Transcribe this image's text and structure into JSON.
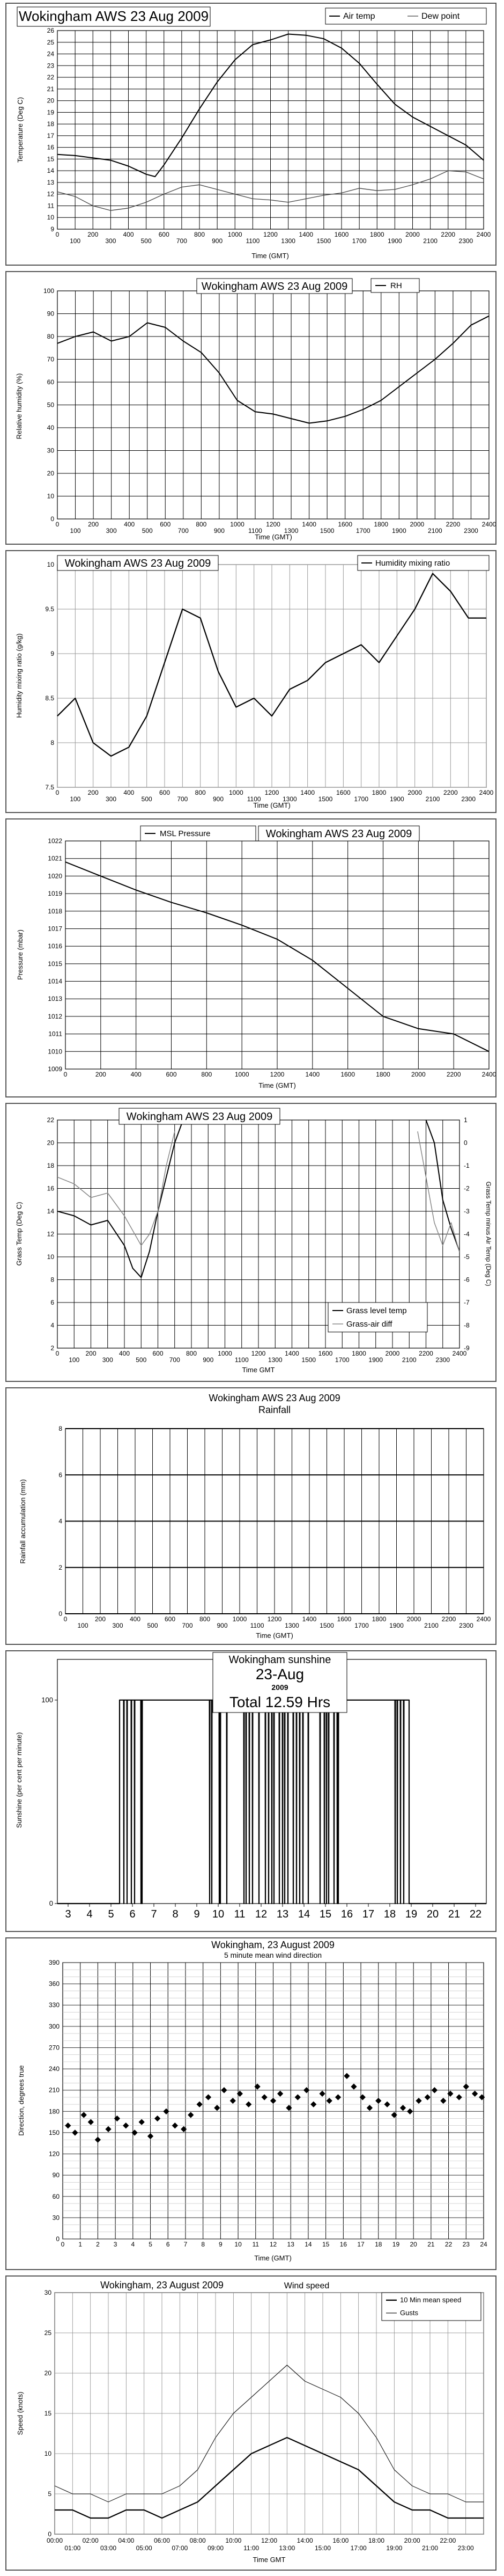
{
  "page": {
    "background": "#ffffff"
  },
  "charts": [
    {
      "id": "temp",
      "type": "line",
      "title": "Wokingham AWS 23 Aug 2009",
      "xlabel": "Time (GMT)",
      "ylabel": "Temperature (Deg C)",
      "xlim": [
        0,
        2400
      ],
      "ylim": [
        9,
        26
      ],
      "x_ticks": [
        0,
        100,
        200,
        300,
        400,
        500,
        600,
        700,
        800,
        900,
        1000,
        1100,
        1200,
        1300,
        1400,
        1500,
        1600,
        1700,
        1800,
        1900,
        2000,
        2100,
        2200,
        2300,
        2400
      ],
      "y_ticks": [
        9,
        10,
        11,
        12,
        13,
        14,
        15,
        16,
        17,
        18,
        19,
        20,
        21,
        22,
        23,
        24,
        25,
        26
      ],
      "legend": [
        "Air temp",
        "Dew point"
      ],
      "series": [
        {
          "name": "Air temp",
          "x": [
            0,
            100,
            200,
            300,
            400,
            500,
            550,
            600,
            700,
            800,
            900,
            1000,
            1100,
            1200,
            1300,
            1400,
            1500,
            1600,
            1700,
            1800,
            1900,
            2000,
            2100,
            2200,
            2300,
            2400
          ],
          "y": [
            15.4,
            15.3,
            15.1,
            14.9,
            14.4,
            13.7,
            13.5,
            14.5,
            16.8,
            19.3,
            21.6,
            23.5,
            24.8,
            25.2,
            25.7,
            25.6,
            25.3,
            24.5,
            23.2,
            21.4,
            19.7,
            18.6,
            17.8,
            17.0,
            16.2,
            14.9
          ]
        },
        {
          "name": "Dew point",
          "x": [
            0,
            100,
            200,
            300,
            400,
            500,
            600,
            700,
            800,
            900,
            1000,
            1100,
            1200,
            1300,
            1400,
            1500,
            1600,
            1700,
            1800,
            1900,
            2000,
            2100,
            2200,
            2300,
            2400
          ],
          "y": [
            12.2,
            11.8,
            11.0,
            10.6,
            10.8,
            11.3,
            12.0,
            12.6,
            12.8,
            12.4,
            12.0,
            11.6,
            11.5,
            11.3,
            11.6,
            11.9,
            12.1,
            12.5,
            12.3,
            12.4,
            12.8,
            13.3,
            14.0,
            13.9,
            13.3
          ]
        }
      ]
    },
    {
      "id": "rh",
      "type": "line",
      "title": "Wokingham AWS 23 Aug 2009",
      "xlabel": "Time (GMT)",
      "ylabel": "Relative humidity (%)",
      "xlim": [
        0,
        2400
      ],
      "ylim": [
        0,
        100
      ],
      "x_ticks": [
        0,
        100,
        200,
        300,
        400,
        500,
        600,
        700,
        800,
        900,
        1000,
        1100,
        1200,
        1300,
        1400,
        1500,
        1600,
        1700,
        1800,
        1900,
        2000,
        2100,
        2200,
        2300,
        2400
      ],
      "y_ticks": [
        0,
        10,
        20,
        30,
        40,
        50,
        60,
        70,
        80,
        90,
        100
      ],
      "legend": [
        "RH"
      ],
      "series": [
        {
          "name": "RH",
          "x": [
            0,
            100,
            200,
            300,
            400,
            500,
            600,
            700,
            800,
            900,
            1000,
            1100,
            1200,
            1300,
            1400,
            1500,
            1600,
            1700,
            1800,
            1900,
            2000,
            2100,
            2200,
            2300,
            2400
          ],
          "y": [
            77,
            80,
            82,
            78,
            80,
            86,
            84,
            78,
            73,
            64,
            52,
            47,
            46,
            44,
            42,
            43,
            45,
            48,
            52,
            58,
            64,
            70,
            77,
            85,
            89
          ]
        }
      ]
    },
    {
      "id": "mix",
      "type": "line",
      "title": "Wokingham AWS 23 Aug 2009",
      "xlabel": "Time (GMT)",
      "ylabel": "Humidity mixing ratio (g/kg)",
      "xlim": [
        0,
        2400
      ],
      "ylim": [
        7.5,
        10
      ],
      "x_ticks": [
        0,
        100,
        200,
        300,
        400,
        500,
        600,
        700,
        800,
        900,
        1000,
        1100,
        1200,
        1300,
        1400,
        1500,
        1600,
        1700,
        1800,
        1900,
        2000,
        2100,
        2200,
        2300,
        2400
      ],
      "y_ticks": [
        7.5,
        8,
        8.5,
        9,
        9.5,
        10
      ],
      "legend": [
        "Humidity mixing ratio"
      ],
      "series": [
        {
          "name": "Humidity mixing ratio",
          "x": [
            0,
            100,
            200,
            300,
            400,
            500,
            600,
            700,
            800,
            900,
            1000,
            1100,
            1200,
            1300,
            1400,
            1500,
            1600,
            1700,
            1800,
            1900,
            2000,
            2100,
            2200,
            2300,
            2400
          ],
          "y": [
            8.3,
            8.5,
            8.0,
            7.85,
            7.95,
            8.3,
            8.9,
            9.5,
            9.4,
            8.8,
            8.4,
            8.5,
            8.3,
            8.6,
            8.7,
            8.9,
            9.0,
            9.1,
            8.9,
            9.2,
            9.5,
            9.9,
            9.7,
            9.4,
            9.4
          ]
        }
      ]
    },
    {
      "id": "pres",
      "type": "line",
      "title": "Wokingham AWS 23 Aug 2009",
      "xlabel": "Time (GMT)",
      "ylabel": "Pressure (mbar)",
      "xlim": [
        0,
        2400
      ],
      "ylim": [
        1009,
        1022
      ],
      "x_ticks": [
        0,
        200,
        400,
        600,
        800,
        1000,
        1200,
        1400,
        1600,
        1800,
        2000,
        2200,
        2400
      ],
      "y_ticks": [
        1009,
        1010,
        1011,
        1012,
        1013,
        1014,
        1015,
        1016,
        1017,
        1018,
        1019,
        1020,
        1021,
        1022
      ],
      "legend": [
        "MSL Pressure"
      ],
      "series": [
        {
          "name": "MSL Pressure",
          "x": [
            0,
            200,
            400,
            600,
            800,
            1000,
            1200,
            1400,
            1600,
            1800,
            2000,
            2200,
            2400
          ],
          "y": [
            1020.8,
            1020.0,
            1019.2,
            1018.5,
            1017.9,
            1017.2,
            1016.4,
            1015.2,
            1013.6,
            1012.0,
            1011.3,
            1011.0,
            1010.0
          ]
        }
      ]
    },
    {
      "id": "grass",
      "type": "line",
      "title": "Wokingham AWS 23 Aug 2009",
      "xlabel": "Time GMT",
      "ylabel": "Grass Temp (Deg C)",
      "ylabel2": "Grass Temp minus Air Temp (Deg C)",
      "xlim": [
        0,
        2400
      ],
      "ylim": [
        2,
        22
      ],
      "y2lim": [
        -9,
        1
      ],
      "x_ticks": [
        0,
        100,
        200,
        300,
        400,
        500,
        600,
        700,
        800,
        900,
        1000,
        1100,
        1200,
        1300,
        1400,
        1500,
        1600,
        1700,
        1800,
        1900,
        2000,
        2100,
        2200,
        2300,
        2400
      ],
      "y_ticks": [
        2,
        4,
        6,
        8,
        10,
        12,
        14,
        16,
        18,
        20,
        22
      ],
      "y2_ticks": [
        -9,
        -8,
        -7,
        -6,
        -5,
        -4,
        -3,
        -2,
        -1,
        0,
        1
      ],
      "legend": [
        "Grass level temp",
        "Grass-air diff"
      ],
      "series": [
        {
          "name": "Grass level temp",
          "x": [
            0,
            100,
            200,
            300,
            400,
            450,
            500,
            550,
            600,
            650,
            700,
            750,
            2200,
            2250,
            2300,
            2350,
            2400
          ],
          "y": [
            14.0,
            13.6,
            12.8,
            13.2,
            11.0,
            9.0,
            8.2,
            10.5,
            14.0,
            17.0,
            20.0,
            22.0,
            22.0,
            20.0,
            15.0,
            12.5,
            10.5
          ]
        },
        {
          "name": "Grass-air diff",
          "x": [
            0,
            100,
            200,
            300,
            400,
            500,
            550,
            600,
            650,
            700,
            2150,
            2200,
            2250,
            2300,
            2350,
            2400
          ],
          "y": [
            -1.5,
            -1.8,
            -2.4,
            -2.2,
            -3.2,
            -4.5,
            -4.0,
            -3.0,
            -1.0,
            0.5,
            0.5,
            -1.5,
            -3.5,
            -4.5,
            -3.5,
            -4.8
          ]
        }
      ]
    },
    {
      "id": "rain",
      "type": "line",
      "title": "Wokingham AWS 23 Aug 2009",
      "subtitle": "Rainfall",
      "xlabel": "Time (GMT)",
      "ylabel": "Rainfall accumulation (mm)",
      "xlim": [
        0,
        2400
      ],
      "ylim": [
        0,
        8
      ],
      "x_ticks": [
        0,
        100,
        200,
        300,
        400,
        500,
        600,
        700,
        800,
        900,
        1000,
        1100,
        1200,
        1300,
        1400,
        1500,
        1600,
        1700,
        1800,
        1900,
        2000,
        2100,
        2200,
        2300,
        2400
      ],
      "y_ticks": [
        0,
        2,
        4,
        6,
        8
      ],
      "series": []
    },
    {
      "id": "sun",
      "type": "line",
      "title": "Wokingham sunshine",
      "date": "23-Aug",
      "year": "2009",
      "total": "Total 12.59 Hrs",
      "ylabel": "Sunshine (per cent per minute)",
      "xlim": [
        2.5,
        22.5
      ],
      "ylim": [
        0,
        120
      ],
      "x_ticks": [
        3,
        4,
        5,
        6,
        7,
        8,
        9,
        10,
        11,
        12,
        13,
        14,
        15,
        16,
        17,
        18,
        19,
        20,
        21,
        22
      ],
      "y_ticks": [
        0,
        100
      ],
      "on_window": [
        5.4,
        18.9
      ],
      "series": [
        {
          "name": "Sunshine",
          "dropouts": [
            5.6,
            5.75,
            5.95,
            6.1,
            6.4,
            6.45,
            9.6,
            9.7,
            10.05,
            10.1,
            10.4,
            11.2,
            11.3,
            11.45,
            11.6,
            11.9,
            12.2,
            12.35,
            12.5,
            12.6,
            12.85,
            13.0,
            13.1,
            13.25,
            13.5,
            13.65,
            13.8,
            13.95,
            14.2,
            14.75,
            14.95,
            15.05,
            15.15,
            15.4,
            15.55,
            15.6,
            18.25,
            18.35,
            18.5,
            18.65
          ]
        }
      ]
    },
    {
      "id": "dir",
      "type": "scatter",
      "title": "Wokingham, 23 August 2009",
      "subtitle": "5 minute mean wind direction",
      "xlabel": "Time (GMT)",
      "ylabel": "Direction, degrees true",
      "xlim": [
        0,
        24
      ],
      "ylim": [
        0,
        390
      ],
      "x_ticks": [
        0,
        1,
        2,
        3,
        4,
        5,
        6,
        7,
        8,
        9,
        10,
        11,
        12,
        13,
        14,
        15,
        16,
        17,
        18,
        19,
        20,
        21,
        22,
        23,
        24
      ],
      "y_ticks": [
        0,
        30,
        60,
        90,
        120,
        150,
        180,
        210,
        240,
        270,
        300,
        330,
        360,
        390
      ],
      "series": [
        {
          "name": "Direction",
          "x": [
            0.3,
            0.7,
            1.2,
            1.6,
            2.0,
            2.6,
            3.1,
            3.6,
            4.1,
            4.5,
            5.0,
            5.4,
            5.9,
            6.4,
            6.9,
            7.3,
            7.8,
            8.3,
            8.8,
            9.2,
            9.7,
            10.1,
            10.6,
            11.1,
            11.5,
            12.0,
            12.4,
            12.9,
            13.4,
            13.9,
            14.3,
            14.8,
            15.2,
            15.7,
            16.2,
            16.6,
            17.1,
            17.5,
            18.0,
            18.5,
            18.9,
            19.4,
            19.8,
            20.3,
            20.8,
            21.2,
            21.7,
            22.1,
            22.6,
            23.0,
            23.5,
            23.9
          ],
          "y": [
            160,
            150,
            175,
            165,
            140,
            155,
            170,
            160,
            150,
            165,
            145,
            170,
            180,
            160,
            155,
            175,
            190,
            200,
            185,
            210,
            195,
            205,
            190,
            215,
            200,
            195,
            205,
            185,
            200,
            210,
            190,
            205,
            195,
            200,
            230,
            215,
            200,
            185,
            195,
            190,
            175,
            185,
            180,
            195,
            200,
            210,
            195,
            205,
            200,
            215,
            205,
            200
          ]
        }
      ]
    },
    {
      "id": "speed",
      "type": "line",
      "title": "Wokingham, 23 August 2009",
      "subtitle": "Wind speed",
      "xlabel": "Time GMT",
      "ylabel": "Speed (knots)",
      "xlim": [
        0,
        24
      ],
      "ylim": [
        0,
        30
      ],
      "x_ticks_top": [
        "00:00",
        "02:00",
        "04:00",
        "06:00",
        "08:00",
        "10:00",
        "12:00",
        "14:00",
        "16:00",
        "18:00",
        "20:00",
        "22:00"
      ],
      "x_ticks_bottom": [
        "01:00",
        "03:00",
        "05:00",
        "07:00",
        "09:00",
        "11:00",
        "13:00",
        "15:00",
        "17:00",
        "19:00",
        "21:00",
        "23:00"
      ],
      "y_ticks": [
        0,
        5,
        10,
        15,
        20,
        25,
        30
      ],
      "legend": [
        "10 Min mean speed",
        "Gusts"
      ],
      "series": [
        {
          "name": "10 Min mean speed",
          "x": [
            0,
            1,
            2,
            3,
            4,
            5,
            6,
            7,
            8,
            9,
            10,
            11,
            12,
            13,
            14,
            15,
            16,
            17,
            18,
            19,
            20,
            21,
            22,
            23,
            24
          ],
          "y": [
            3,
            3,
            2,
            2,
            3,
            3,
            2,
            3,
            4,
            6,
            8,
            10,
            11,
            12,
            11,
            10,
            9,
            8,
            6,
            4,
            3,
            3,
            2,
            2,
            2
          ]
        },
        {
          "name": "Gusts",
          "x": [
            0,
            1,
            2,
            3,
            4,
            5,
            6,
            7,
            8,
            9,
            10,
            11,
            12,
            13,
            14,
            15,
            16,
            17,
            18,
            19,
            20,
            21,
            22,
            23,
            24
          ],
          "y": [
            6,
            5,
            5,
            4,
            5,
            5,
            5,
            6,
            8,
            12,
            15,
            17,
            19,
            21,
            19,
            18,
            17,
            15,
            12,
            8,
            6,
            5,
            5,
            4,
            4
          ]
        }
      ]
    }
  ]
}
